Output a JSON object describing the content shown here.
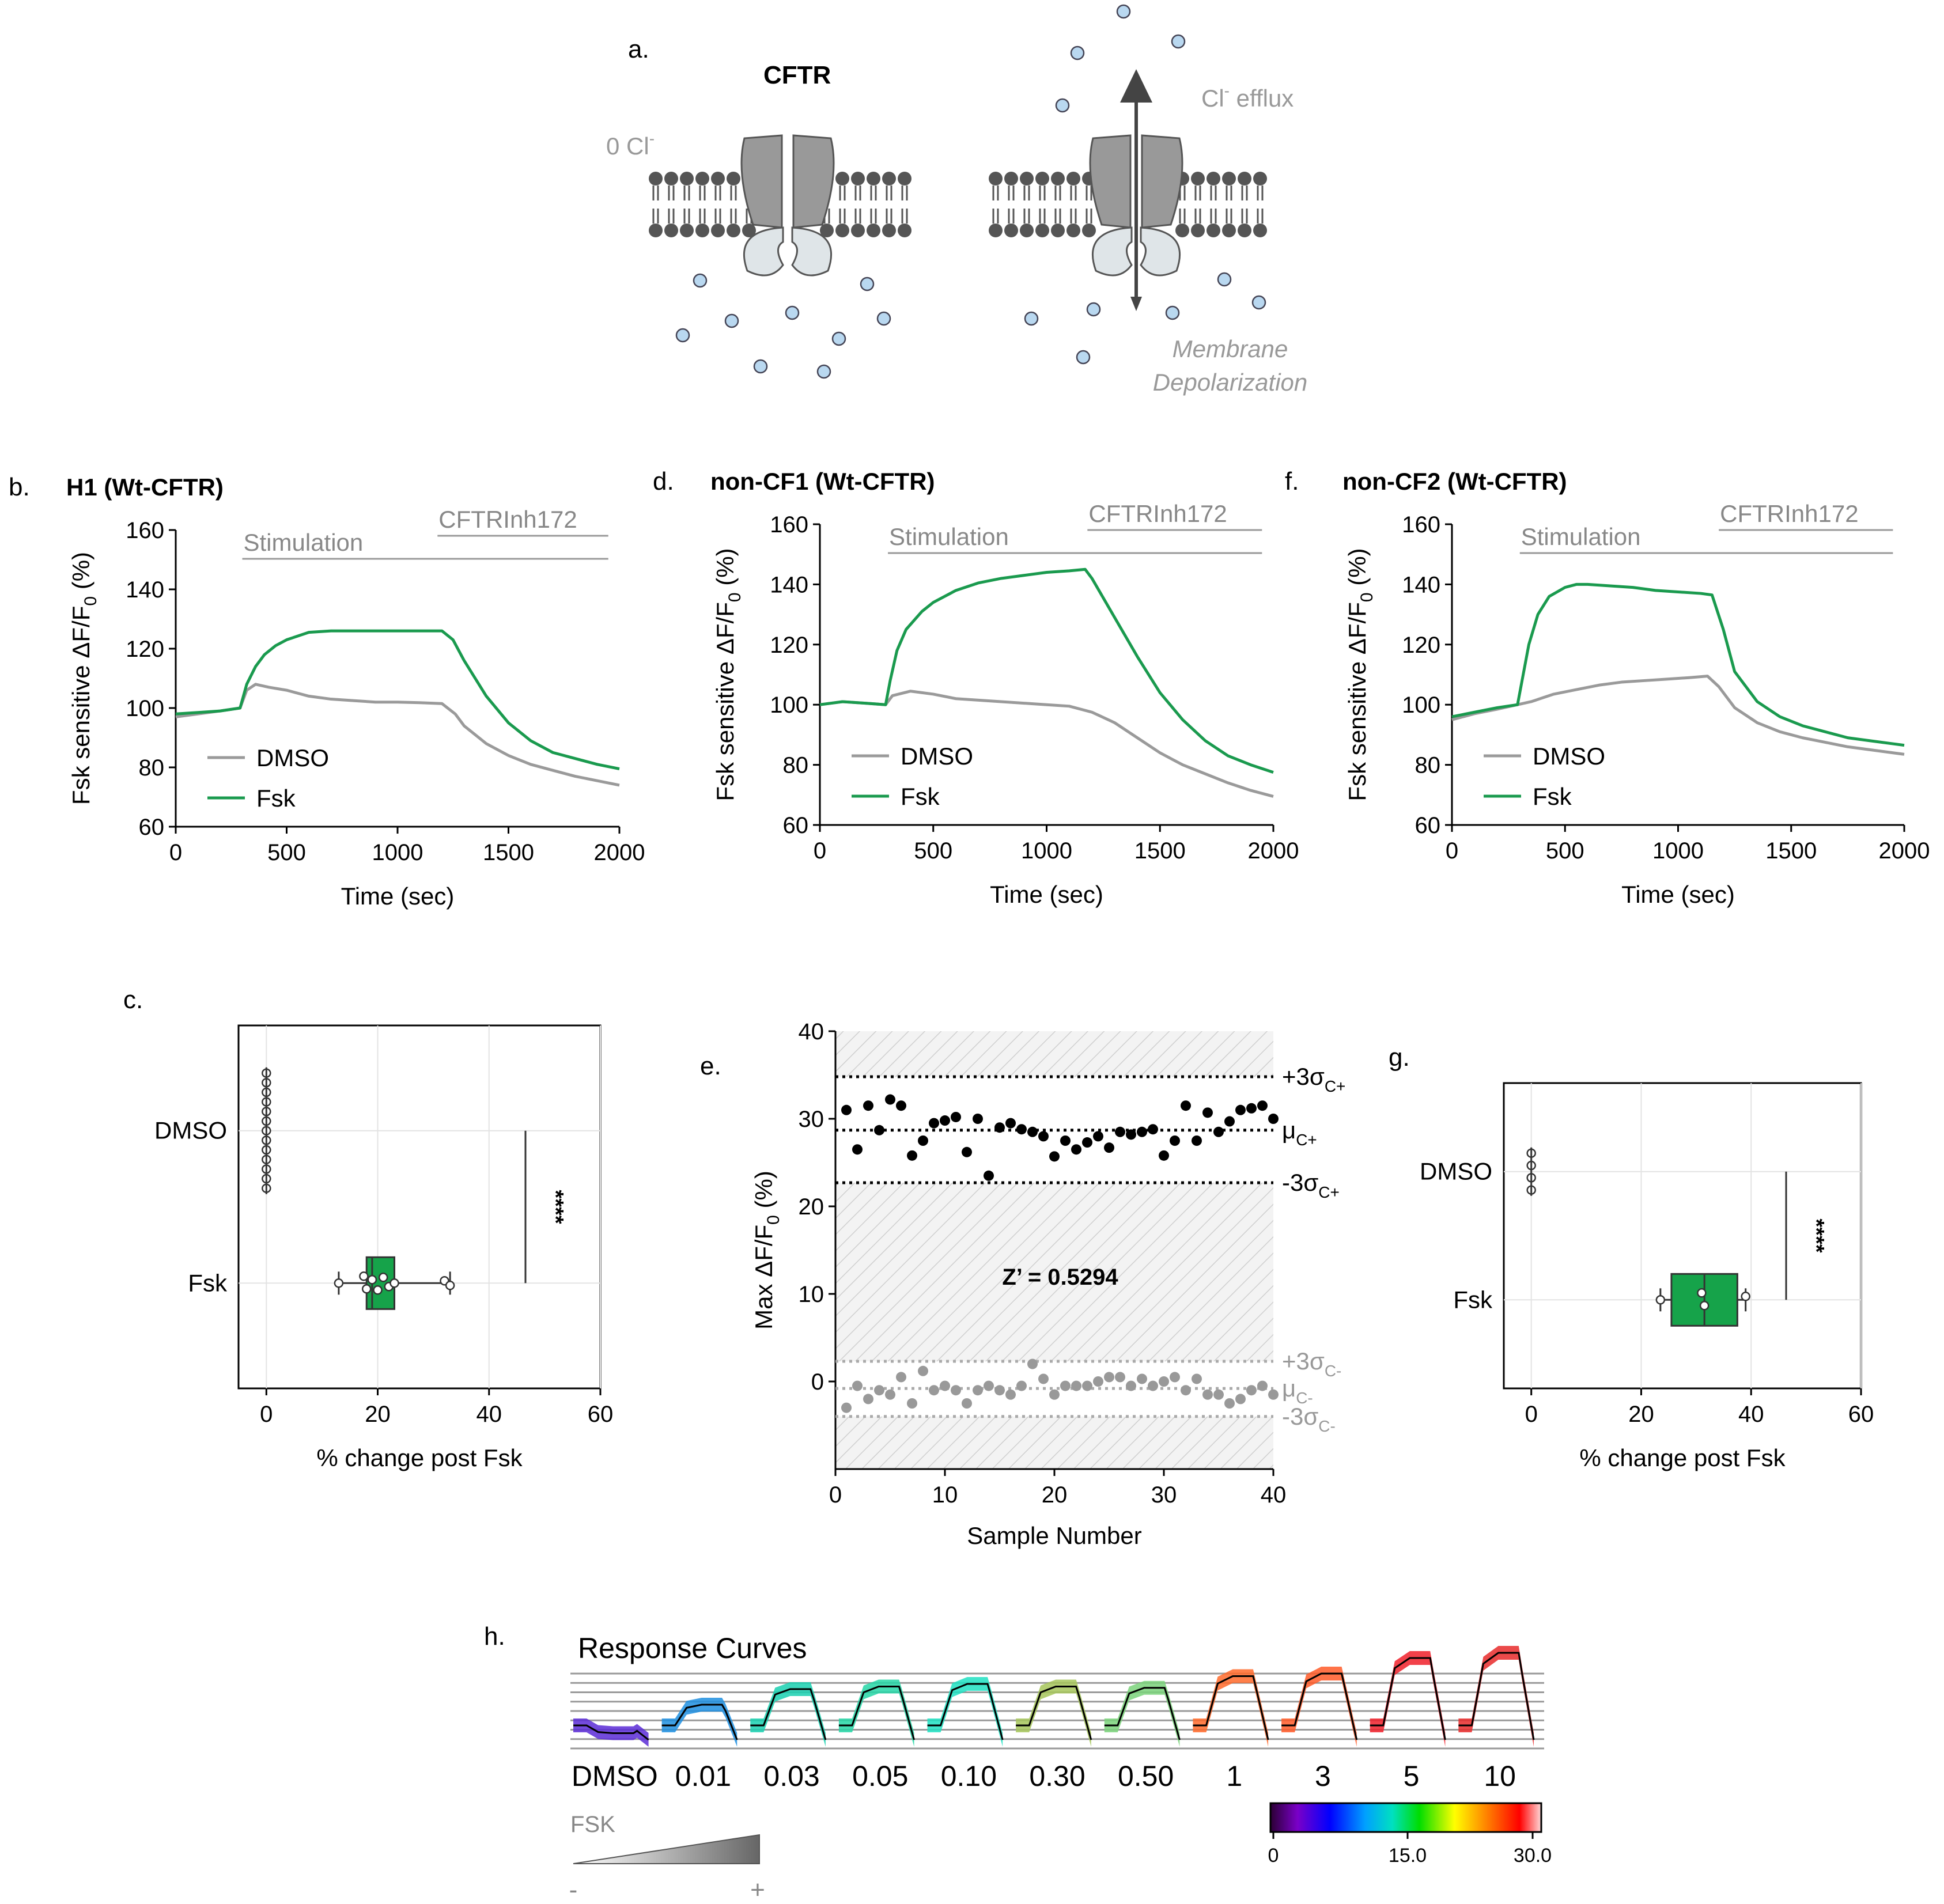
{
  "panel_a": {
    "letter": "a.",
    "title": "CFTR",
    "zero_cl": "0 Cl",
    "zero_cl_sup": "-",
    "efflux": "Cl",
    "efflux_sup": "-",
    "efflux_rest": " efflux",
    "membrane_line1": "Membrane",
    "membrane_line2": "Depolarization"
  },
  "colors": {
    "fsk": "#1a9a4e",
    "dmso": "#9a9a9a",
    "box": "#16a34a",
    "ion": "#b9d8f0"
  },
  "chart_data": [
    {
      "id": "b",
      "letter": "b.",
      "type": "line",
      "title": "H1 (Wt-CFTR)",
      "xlabel": "Time (sec)",
      "ylabel_main": "Fsk sensitive ΔF/F",
      "ylabel_sub": "0",
      "ylabel_end": " (%)",
      "xlim": [
        0,
        2000
      ],
      "ylim": [
        60,
        160
      ],
      "xticks": [
        0,
        500,
        1000,
        1500,
        2000
      ],
      "yticks": [
        60,
        80,
        100,
        120,
        140,
        160
      ],
      "annotations": [
        {
          "text": "Stimulation",
          "x_start": 300,
          "x_end": 1950,
          "level": 1
        },
        {
          "text": "CFTRInh172",
          "x_start": 1180,
          "x_end": 1950,
          "level": 2
        }
      ],
      "legend": [
        "DMSO",
        "Fsk"
      ],
      "series": [
        {
          "name": "DMSO",
          "x": [
            0,
            100,
            200,
            290,
            320,
            360,
            420,
            500,
            600,
            700,
            800,
            900,
            1000,
            1100,
            1200,
            1260,
            1300,
            1400,
            1500,
            1600,
            1700,
            1800,
            1900,
            2000
          ],
          "y": [
            97,
            98,
            99,
            100,
            106,
            108,
            107,
            106,
            104,
            103,
            102.5,
            102,
            102,
            101.8,
            101.5,
            98,
            94,
            88,
            84,
            81,
            79,
            77,
            75.5,
            74
          ]
        },
        {
          "name": "Fsk",
          "x": [
            0,
            100,
            200,
            290,
            320,
            360,
            400,
            450,
            500,
            600,
            700,
            800,
            900,
            1000,
            1100,
            1200,
            1250,
            1300,
            1400,
            1500,
            1600,
            1700,
            1800,
            1900,
            2000
          ],
          "y": [
            98,
            98.5,
            99,
            100,
            108,
            114,
            118,
            121,
            123,
            125.5,
            126,
            126,
            126,
            126,
            126,
            126,
            123,
            116,
            104,
            95,
            89,
            85,
            83,
            81,
            79.5
          ]
        }
      ]
    },
    {
      "id": "d",
      "letter": "d.",
      "type": "line",
      "title": "non-CF1 (Wt-CFTR)",
      "xlabel": "Time (sec)",
      "ylabel_main": "Fsk sensitive ΔF/F",
      "ylabel_sub": "0",
      "ylabel_end": " (%)",
      "xlim": [
        0,
        2000
      ],
      "ylim": [
        60,
        160
      ],
      "xticks": [
        0,
        500,
        1000,
        1500,
        2000
      ],
      "yticks": [
        60,
        80,
        100,
        120,
        140,
        160
      ],
      "annotations": [
        {
          "text": "Stimulation",
          "x_start": 300,
          "x_end": 1950,
          "level": 1
        },
        {
          "text": "CFTRInh172",
          "x_start": 1180,
          "x_end": 1950,
          "level": 2
        }
      ],
      "legend": [
        "DMSO",
        "Fsk"
      ],
      "series": [
        {
          "name": "DMSO",
          "x": [
            0,
            100,
            200,
            290,
            320,
            400,
            500,
            600,
            700,
            800,
            900,
            1000,
            1100,
            1200,
            1300,
            1400,
            1500,
            1600,
            1700,
            1800,
            1900,
            2000
          ],
          "y": [
            100,
            101,
            100.5,
            100,
            103,
            104.5,
            103.5,
            102,
            101.5,
            101,
            100.5,
            100,
            99.5,
            97.5,
            94,
            89,
            84,
            80,
            77,
            74,
            71.5,
            69.5
          ]
        },
        {
          "name": "Fsk",
          "x": [
            0,
            100,
            200,
            290,
            310,
            340,
            380,
            450,
            500,
            600,
            700,
            800,
            900,
            1000,
            1100,
            1170,
            1200,
            1300,
            1400,
            1500,
            1600,
            1700,
            1800,
            1900,
            2000
          ],
          "y": [
            100,
            101,
            100.5,
            100,
            108,
            118,
            125,
            131,
            134,
            138,
            140.5,
            142,
            143,
            144,
            144.5,
            145,
            142,
            129,
            116,
            104,
            95,
            88,
            83,
            80,
            77.5
          ]
        }
      ]
    },
    {
      "id": "f",
      "letter": "f.",
      "type": "line",
      "title": "non-CF2 (Wt-CFTR)",
      "xlabel": "Time (sec)",
      "ylabel_main": "Fsk sensitive ΔF/F",
      "ylabel_sub": "0",
      "ylabel_end": " (%)",
      "xlim": [
        0,
        2000
      ],
      "ylim": [
        60,
        160
      ],
      "xticks": [
        0,
        500,
        1000,
        1500,
        2000
      ],
      "yticks": [
        60,
        80,
        100,
        120,
        140,
        160
      ],
      "annotations": [
        {
          "text": "Stimulation",
          "x_start": 300,
          "x_end": 1950,
          "level": 1
        },
        {
          "text": "CFTRInh172",
          "x_start": 1180,
          "x_end": 1950,
          "level": 2
        }
      ],
      "legend": [
        "DMSO",
        "Fsk"
      ],
      "series": [
        {
          "name": "DMSO",
          "x": [
            0,
            100,
            200,
            290,
            350,
            450,
            550,
            650,
            750,
            850,
            950,
            1050,
            1130,
            1180,
            1250,
            1350,
            1450,
            1550,
            1650,
            1750,
            1850,
            1950,
            2000
          ],
          "y": [
            95,
            97,
            98.5,
            100,
            101,
            103.5,
            105,
            106.5,
            107.5,
            108,
            108.5,
            109,
            109.5,
            106,
            99,
            94,
            91,
            89,
            87.5,
            86,
            85,
            84,
            83.5
          ]
        },
        {
          "name": "Fsk",
          "x": [
            0,
            100,
            200,
            290,
            310,
            340,
            380,
            430,
            500,
            550,
            600,
            700,
            800,
            900,
            1000,
            1100,
            1150,
            1200,
            1250,
            1350,
            1450,
            1550,
            1650,
            1750,
            1850,
            1950,
            2000
          ],
          "y": [
            96,
            97.5,
            99,
            100,
            108,
            120,
            130,
            136,
            139,
            140,
            140,
            139.5,
            139,
            138,
            137.5,
            137,
            136.5,
            125,
            111,
            101,
            96,
            93,
            91,
            89,
            88,
            87,
            86.5
          ]
        }
      ]
    },
    {
      "id": "c",
      "letter": "c.",
      "type": "box",
      "xlabel": "% change post Fsk",
      "xlim": [
        -5,
        60
      ],
      "xticks": [
        0,
        20,
        40,
        60
      ],
      "categories": [
        "DMSO",
        "Fsk"
      ],
      "dmso_points": [
        0,
        0,
        0,
        0,
        0,
        0,
        0,
        0,
        0,
        0,
        0,
        0,
        0
      ],
      "fsk_box": {
        "whisker_low": 13,
        "q1": 18,
        "median": 19,
        "q3": 23,
        "whisker_high": 33
      },
      "fsk_points": [
        13,
        17.5,
        18,
        19,
        20,
        21,
        22,
        23,
        32,
        33
      ],
      "significance": "****"
    },
    {
      "id": "e",
      "letter": "e.",
      "type": "scatter",
      "xlabel": "Sample Number",
      "ylabel_main": "Max ΔF/F",
      "ylabel_sub": "0",
      "ylabel_end": " (%)",
      "xlim": [
        0,
        40
      ],
      "ylim": [
        -10,
        40
      ],
      "xticks": [
        0,
        10,
        20,
        30,
        40
      ],
      "yticks": [
        0,
        10,
        20,
        30,
        40
      ],
      "zprime": "Z’ = 0.5294",
      "pos_mean": 28.7,
      "pos_upper": 34.8,
      "pos_lower": 22.7,
      "neg_mean": -0.8,
      "neg_upper": 2.3,
      "neg_lower": -4.0,
      "label_pos_upper": "+3σ",
      "label_pos_upper_sub": "C+",
      "label_pos_mean": "μ",
      "label_pos_mean_sub": "C+",
      "label_pos_lower": "-3σ",
      "label_pos_lower_sub": "C+",
      "label_neg_upper": "+3σ",
      "label_neg_upper_sub": "C-",
      "label_neg_mean": "μ",
      "label_neg_mean_sub": "C-",
      "label_neg_lower": "-3σ",
      "label_neg_lower_sub": "C-",
      "positive": [
        31,
        26.5,
        31.5,
        28.7,
        32.2,
        31.5,
        25.8,
        27.5,
        29.5,
        29.8,
        30.2,
        26.2,
        30,
        23.5,
        29,
        29.5,
        28.8,
        28.5,
        28,
        25.7,
        27.5,
        26.5,
        27.3,
        28,
        26.7,
        28.5,
        28.2,
        28.5,
        28.8,
        25.8,
        27.5,
        31.5,
        27.5,
        30.7,
        28.5,
        29.7,
        31,
        31.2,
        31.5,
        30
      ],
      "negative": [
        -3,
        -0.5,
        -2,
        -1,
        -1.5,
        0.5,
        -2.5,
        1.2,
        -1,
        -0.5,
        -1,
        -2.5,
        -1,
        -0.5,
        -1,
        -1.5,
        -0.5,
        2,
        0.3,
        -1.5,
        -0.5,
        -0.5,
        -0.5,
        0,
        0.5,
        0.5,
        -0.5,
        0.3,
        -0.5,
        0,
        0.5,
        -1,
        0.3,
        -1.5,
        -1.5,
        -2.5,
        -2,
        -1,
        -0.5,
        -1.5
      ]
    },
    {
      "id": "g",
      "letter": "g.",
      "type": "box",
      "xlabel": "% change post Fsk",
      "xlim": [
        -5,
        60
      ],
      "xticks": [
        0,
        20,
        40,
        60
      ],
      "categories": [
        "DMSO",
        "Fsk"
      ],
      "dmso_points": [
        0,
        0,
        0,
        0
      ],
      "fsk_box": {
        "whisker_low": 23.5,
        "q1": 25.5,
        "median": 31.5,
        "q3": 37.5,
        "whisker_high": 39
      },
      "fsk_points": [
        23.5,
        31,
        31.5,
        39
      ],
      "significance": "****"
    },
    {
      "id": "h",
      "letter": "h.",
      "type": "line",
      "title": "Response Curves",
      "labels": [
        "DMSO",
        "0.01",
        "0.03",
        "0.05",
        "0.10",
        "0.30",
        "0.50",
        "1",
        "3",
        "5",
        "10"
      ],
      "amplitudes": [
        -3,
        8,
        14,
        15,
        16,
        15,
        14.5,
        19,
        20,
        26,
        28
      ],
      "colors": [
        "#5b2bd6",
        "#1f8fe0",
        "#19d0b0",
        "#24d6a6",
        "#1fe0c2",
        "#a6c65a",
        "#7ad27a",
        "#ff6a2a",
        "#ff5a28",
        "#f0202a",
        "#e82a2a"
      ],
      "fsk_label": "FSK",
      "minus": "-",
      "plus": "+",
      "colorbar_ticks": [
        "0",
        "15.0",
        "30.0"
      ]
    }
  ]
}
